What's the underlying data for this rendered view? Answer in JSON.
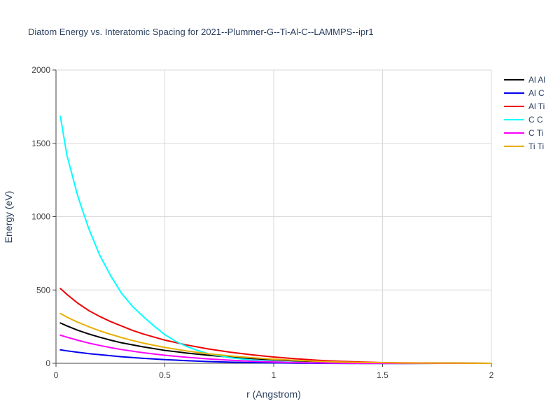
{
  "chart_data": {
    "type": "line",
    "title": "Diatom Energy vs. Interatomic Spacing for 2021--Plummer-G--Ti-Al-C--LAMMPS--ipr1",
    "xlabel": "r (Angstrom)",
    "ylabel": "Energy (eV)",
    "xlim": [
      0,
      2
    ],
    "ylim": [
      0,
      2000
    ],
    "xticks": [
      0,
      0.5,
      1,
      1.5,
      2
    ],
    "xtick_labels": [
      "0",
      "0.5",
      "1",
      "1.5",
      "2"
    ],
    "yticks": [
      0,
      500,
      1000,
      1500,
      2000
    ],
    "ytick_labels": [
      "0",
      "500",
      "1000",
      "1500",
      "2000"
    ],
    "grid": true,
    "legend_position": "top-right",
    "series": [
      {
        "name": "Al Al",
        "color": "#000000",
        "x": [
          0.02,
          0.05,
          0.1,
          0.15,
          0.2,
          0.25,
          0.3,
          0.4,
          0.5,
          0.6,
          0.7,
          0.8,
          0.9,
          1.0,
          1.1,
          1.2,
          1.3,
          1.4,
          1.5,
          1.6,
          1.8,
          2.0
        ],
        "y": [
          275,
          255,
          225,
          200,
          178,
          158,
          140,
          112,
          88,
          70,
          55,
          42,
          32,
          24,
          17,
          12,
          8,
          5,
          3,
          2,
          1,
          0
        ]
      },
      {
        "name": "Al C",
        "color": "#0000ee",
        "x": [
          0.02,
          0.05,
          0.1,
          0.15,
          0.2,
          0.25,
          0.3,
          0.4,
          0.5,
          0.6,
          0.7,
          0.8,
          0.9,
          1.0,
          1.1,
          1.2,
          1.4,
          1.6,
          1.8,
          2.0
        ],
        "y": [
          92,
          85,
          75,
          66,
          59,
          52,
          45,
          34,
          25,
          18,
          12,
          8,
          5,
          3,
          1,
          0,
          -1,
          -1,
          0,
          0
        ]
      },
      {
        "name": "Al Ti",
        "color": "#ee0000",
        "x": [
          0.02,
          0.05,
          0.1,
          0.15,
          0.2,
          0.25,
          0.3,
          0.35,
          0.4,
          0.5,
          0.6,
          0.7,
          0.8,
          0.9,
          1.0,
          1.1,
          1.2,
          1.3,
          1.4,
          1.5,
          1.6,
          1.8,
          2.0
        ],
        "y": [
          510,
          470,
          410,
          360,
          320,
          285,
          255,
          225,
          200,
          158,
          125,
          98,
          76,
          58,
          43,
          31,
          21,
          14,
          9,
          5,
          3,
          1,
          0
        ]
      },
      {
        "name": "C C",
        "color": "#00ffff",
        "x": [
          0.02,
          0.05,
          0.1,
          0.15,
          0.2,
          0.25,
          0.3,
          0.35,
          0.4,
          0.45,
          0.5,
          0.55,
          0.6,
          0.65,
          0.7,
          0.8,
          0.9,
          1.0,
          1.1,
          1.2,
          1.4,
          1.6,
          1.8,
          2.0
        ],
        "y": [
          1685,
          1420,
          1140,
          920,
          740,
          600,
          480,
          390,
          320,
          255,
          195,
          150,
          115,
          88,
          65,
          38,
          22,
          12,
          6,
          3,
          1,
          0,
          0,
          0
        ]
      },
      {
        "name": "C Ti",
        "color": "#ff00ff",
        "x": [
          0.02,
          0.05,
          0.1,
          0.15,
          0.2,
          0.25,
          0.3,
          0.4,
          0.5,
          0.6,
          0.7,
          0.8,
          0.9,
          1.0,
          1.1,
          1.2,
          1.3,
          1.4,
          1.6,
          1.8,
          2.0
        ],
        "y": [
          192,
          178,
          157,
          138,
          122,
          107,
          94,
          72,
          55,
          41,
          30,
          21,
          14,
          9,
          5,
          3,
          1,
          0,
          0,
          0,
          0
        ]
      },
      {
        "name": "Ti Ti",
        "color": "#e6b000",
        "x": [
          0.02,
          0.05,
          0.1,
          0.15,
          0.2,
          0.25,
          0.3,
          0.35,
          0.4,
          0.5,
          0.6,
          0.7,
          0.8,
          0.9,
          1.0,
          1.1,
          1.2,
          1.3,
          1.4,
          1.5,
          1.6,
          1.8,
          2.0
        ],
        "y": [
          340,
          315,
          280,
          250,
          222,
          198,
          176,
          156,
          138,
          108,
          84,
          65,
          50,
          38,
          28,
          20,
          14,
          9,
          6,
          4,
          2,
          1,
          0
        ]
      }
    ]
  }
}
